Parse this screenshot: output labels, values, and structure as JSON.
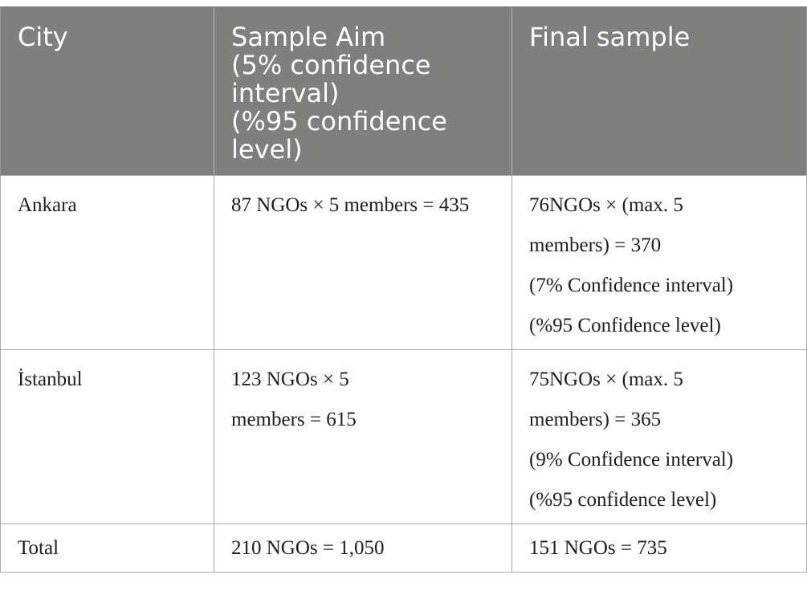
{
  "table": {
    "headers": [
      [
        "City"
      ],
      [
        "Sample Aim",
        "(5% confidence",
        "interval)",
        "(%95 confidence",
        "level)"
      ],
      [
        "Final sample"
      ]
    ],
    "rows": [
      {
        "city": "Ankara",
        "sample_aim": [
          "87 NGOs × 5 members = 435"
        ],
        "final_sample": [
          "76NGOs × (max. 5",
          "members) = 370",
          "(7% Confidence interval)",
          "(%95 Confidence level)"
        ]
      },
      {
        "city": "İstanbul",
        "sample_aim": [
          "123 NGOs × 5",
          "members = 615"
        ],
        "final_sample": [
          "75NGOs × (max. 5",
          "members) = 365",
          "(9% Confidence interval)",
          "(%95 confidence level)"
        ]
      },
      {
        "city": "Total",
        "sample_aim": [
          "210 NGOs = 1,050"
        ],
        "final_sample": [
          "151 NGOs = 735"
        ]
      }
    ]
  }
}
